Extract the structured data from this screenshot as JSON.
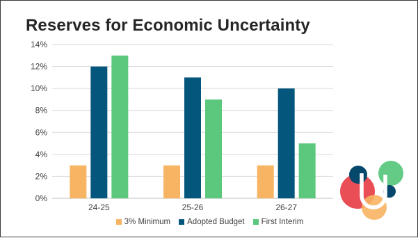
{
  "chart_data": {
    "type": "bar",
    "title": "Reserves for Economic Uncertainty",
    "categories": [
      "24-25",
      "25-26",
      "26-27"
    ],
    "series": [
      {
        "name": "3% Minimum",
        "values": [
          3,
          3,
          3
        ],
        "color": "#F7B462"
      },
      {
        "name": "Adopted Budget",
        "values": [
          12,
          11,
          10
        ],
        "color": "#05567C"
      },
      {
        "name": "First Interim",
        "values": [
          13,
          9,
          5
        ],
        "color": "#5BC87E"
      }
    ],
    "ylim": [
      0,
      14
    ],
    "yticks": [
      0,
      2,
      4,
      6,
      8,
      10,
      12,
      14
    ],
    "ytick_labels": [
      "0%",
      "2%",
      "4%",
      "6%",
      "8%",
      "10%",
      "12%",
      "14%"
    ],
    "xlabel": "",
    "ylabel": "",
    "grid": true,
    "legend_position": "bottom"
  },
  "logo": {
    "icon": "district-logo-icon",
    "colors": {
      "red": "#E8454E",
      "navy": "#05486B",
      "green": "#5BC87E",
      "orange": "#F7B462"
    }
  }
}
